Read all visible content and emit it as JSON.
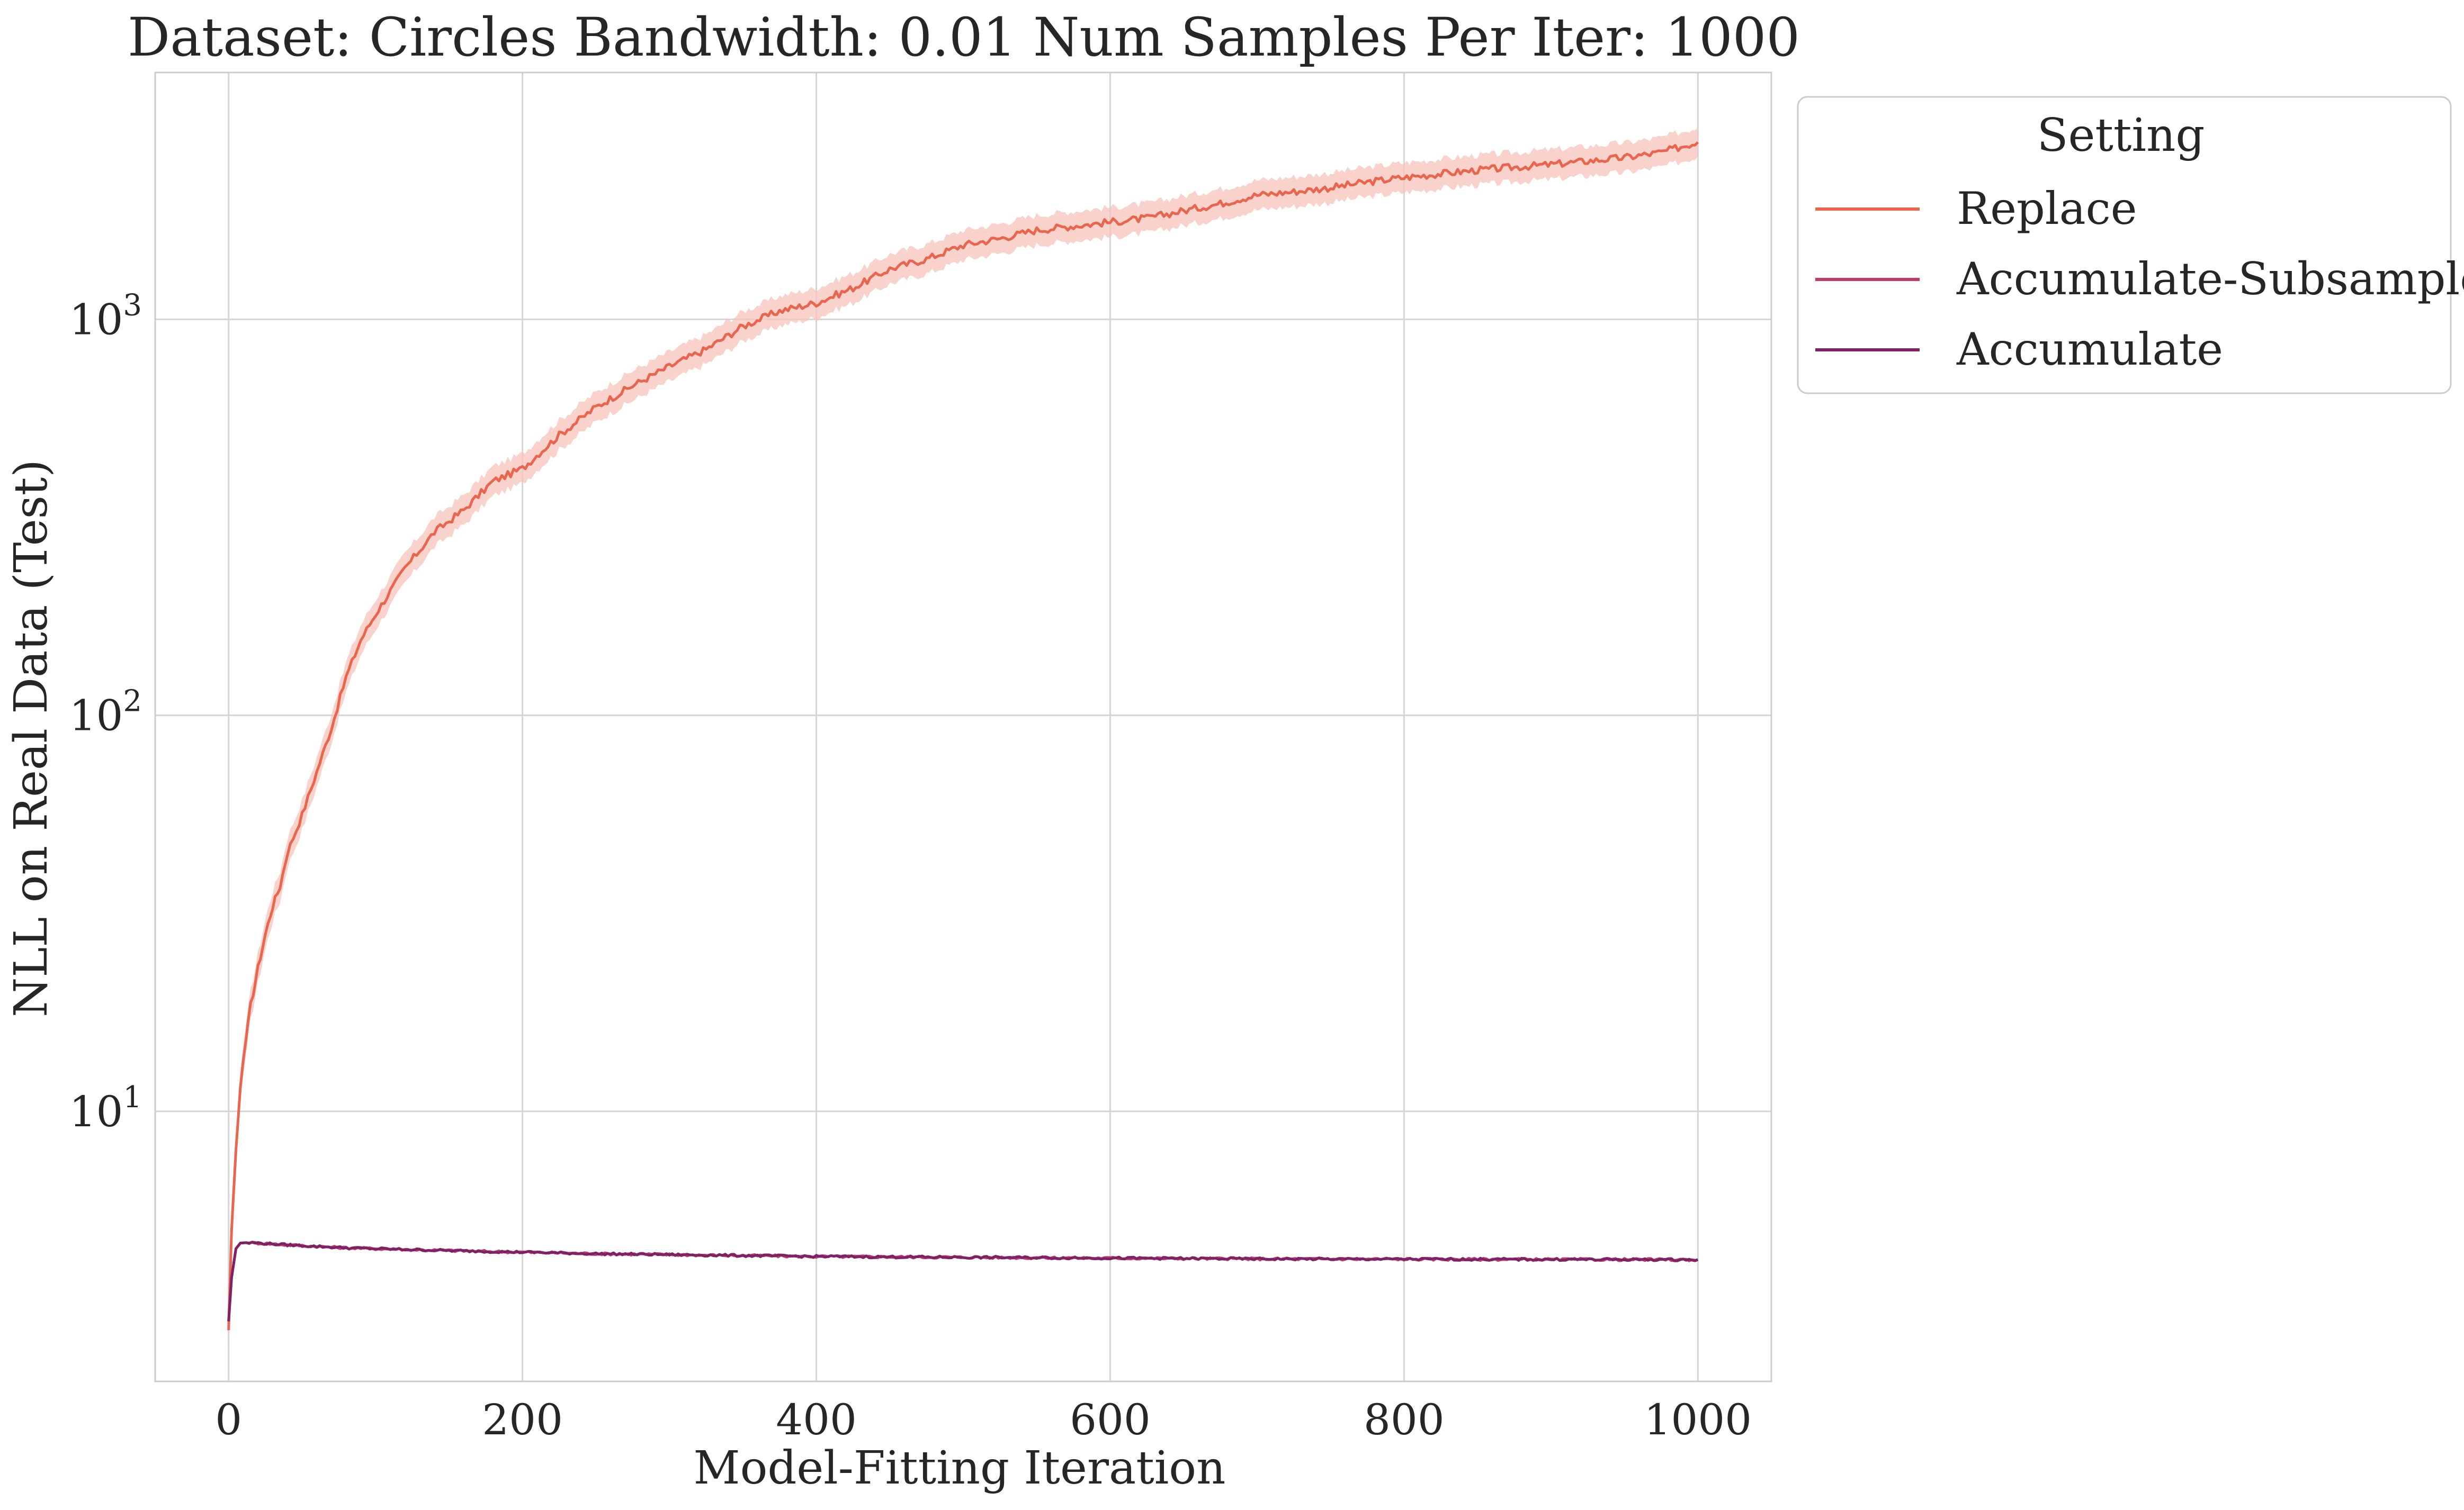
{
  "chart_data": {
    "type": "line",
    "title": "Dataset: Circles Bandwidth: 0.01 Num Samples Per Iter: 1000",
    "xlabel": "Model-Fitting Iteration",
    "ylabel": "NLL on Real Data (Test)",
    "xlim": [
      -50,
      1050
    ],
    "ylim": [
      2.08,
      4200
    ],
    "yscale": "log",
    "xticks": [
      0,
      200,
      400,
      600,
      800,
      1000
    ],
    "xtick_labels": [
      "0",
      "200",
      "400",
      "600",
      "800",
      "1000"
    ],
    "yticks": [
      10,
      100,
      1000
    ],
    "ytick_labels": [
      {
        "base": "10",
        "exp": "1"
      },
      {
        "base": "10",
        "exp": "2"
      },
      {
        "base": "10",
        "exp": "3"
      }
    ],
    "grid": true,
    "legend": {
      "title": "Setting",
      "placement": "outside upper right"
    },
    "series": [
      {
        "name": "Replace",
        "color": "#e8664e",
        "band_color": "#f5c3ba",
        "x": [
          0,
          2,
          5,
          8,
          10,
          15,
          20,
          25,
          30,
          35,
          40,
          50,
          60,
          70,
          80,
          90,
          100,
          120,
          140,
          160,
          180,
          200,
          225,
          250,
          275,
          300,
          325,
          350,
          375,
          400,
          425,
          450,
          475,
          500,
          525,
          550,
          575,
          600,
          625,
          650,
          675,
          700,
          725,
          750,
          775,
          800,
          825,
          850,
          875,
          900,
          925,
          950,
          975,
          1000
        ],
        "y": [
          2.8,
          5.0,
          8.0,
          11.5,
          13.5,
          18.5,
          23,
          28,
          33,
          37,
          45,
          56,
          72,
          93,
          125,
          155,
          180,
          235,
          290,
          330,
          390,
          420,
          510,
          600,
          680,
          760,
          840,
          960,
          1050,
          1100,
          1200,
          1340,
          1420,
          1540,
          1600,
          1680,
          1720,
          1760,
          1800,
          1880,
          1960,
          2060,
          2100,
          2150,
          2220,
          2280,
          2330,
          2380,
          2420,
          2460,
          2510,
          2560,
          2640,
          2800
        ],
        "band_rel": 0.09
      },
      {
        "name": "Accumulate-Subsample",
        "color": "#c03a6a",
        "x": [
          0,
          2,
          5,
          8,
          12,
          20,
          40,
          80,
          150,
          250,
          400,
          550,
          700,
          850,
          1000
        ],
        "y": [
          2.95,
          3.8,
          4.5,
          4.65,
          4.66,
          4.65,
          4.6,
          4.52,
          4.45,
          4.37,
          4.3,
          4.27,
          4.24,
          4.23,
          4.22
        ]
      },
      {
        "name": "Accumulate",
        "color": "#7e2265",
        "x": [
          0,
          2,
          5,
          8,
          12,
          20,
          40,
          80,
          150,
          250,
          400,
          550,
          700,
          850,
          1000
        ],
        "y": [
          2.95,
          3.8,
          4.5,
          4.65,
          4.66,
          4.65,
          4.6,
          4.52,
          4.45,
          4.37,
          4.3,
          4.27,
          4.24,
          4.23,
          4.22
        ]
      }
    ]
  }
}
